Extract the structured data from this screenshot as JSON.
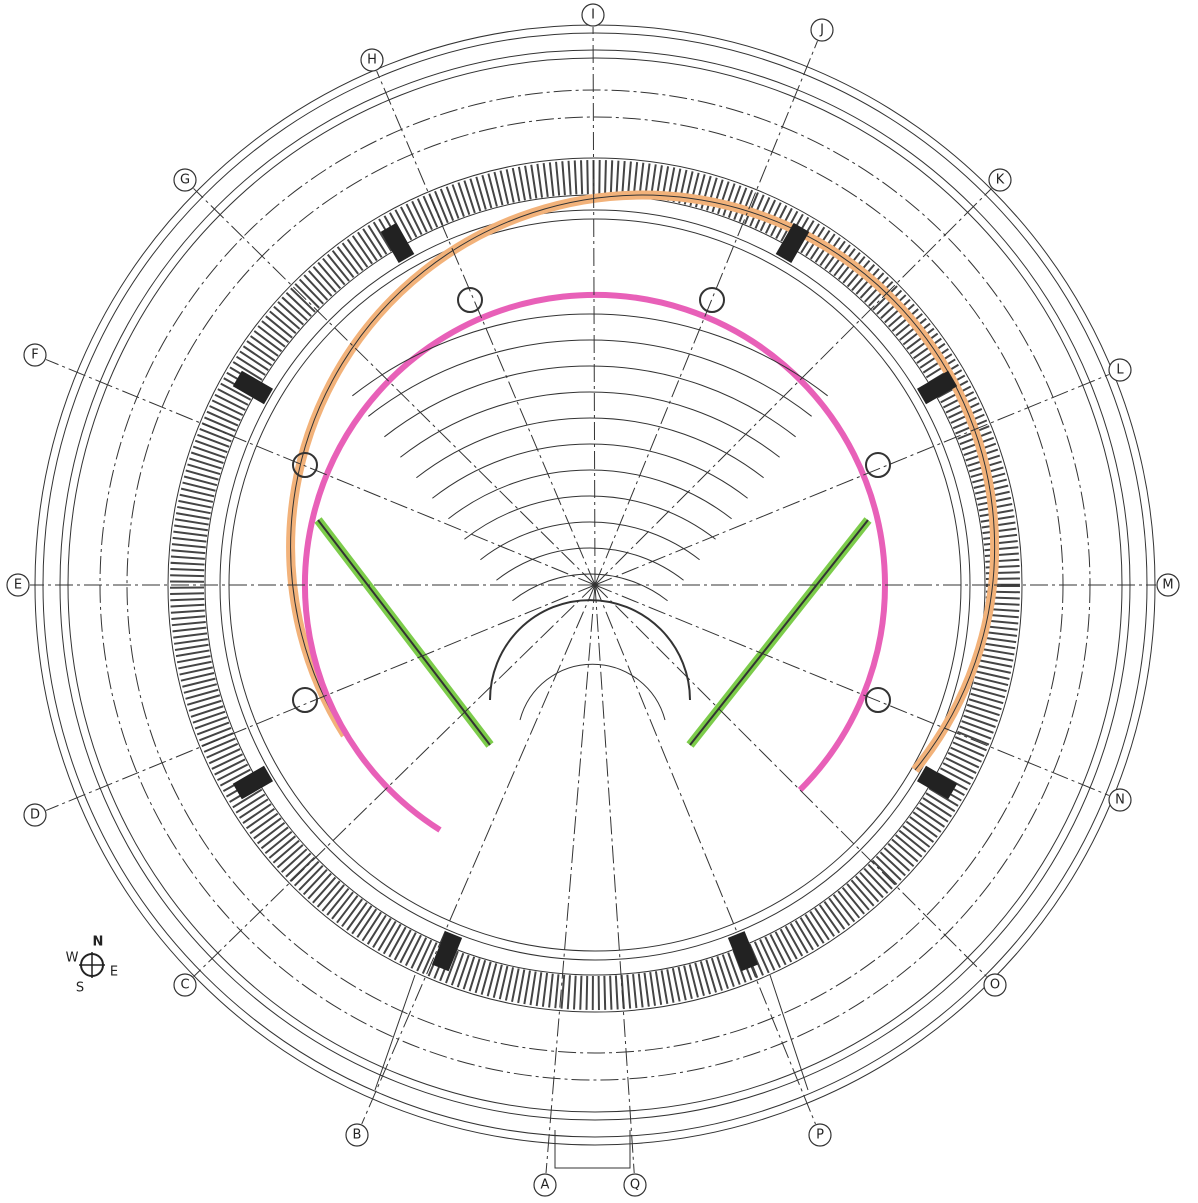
{
  "grid_labels": [
    "A",
    "B",
    "C",
    "D",
    "E",
    "F",
    "G",
    "H",
    "I",
    "J",
    "K",
    "L",
    "M",
    "N",
    "O",
    "P",
    "Q"
  ],
  "compass": {
    "north": "N",
    "east": "E",
    "south": "S",
    "west": "W"
  }
}
